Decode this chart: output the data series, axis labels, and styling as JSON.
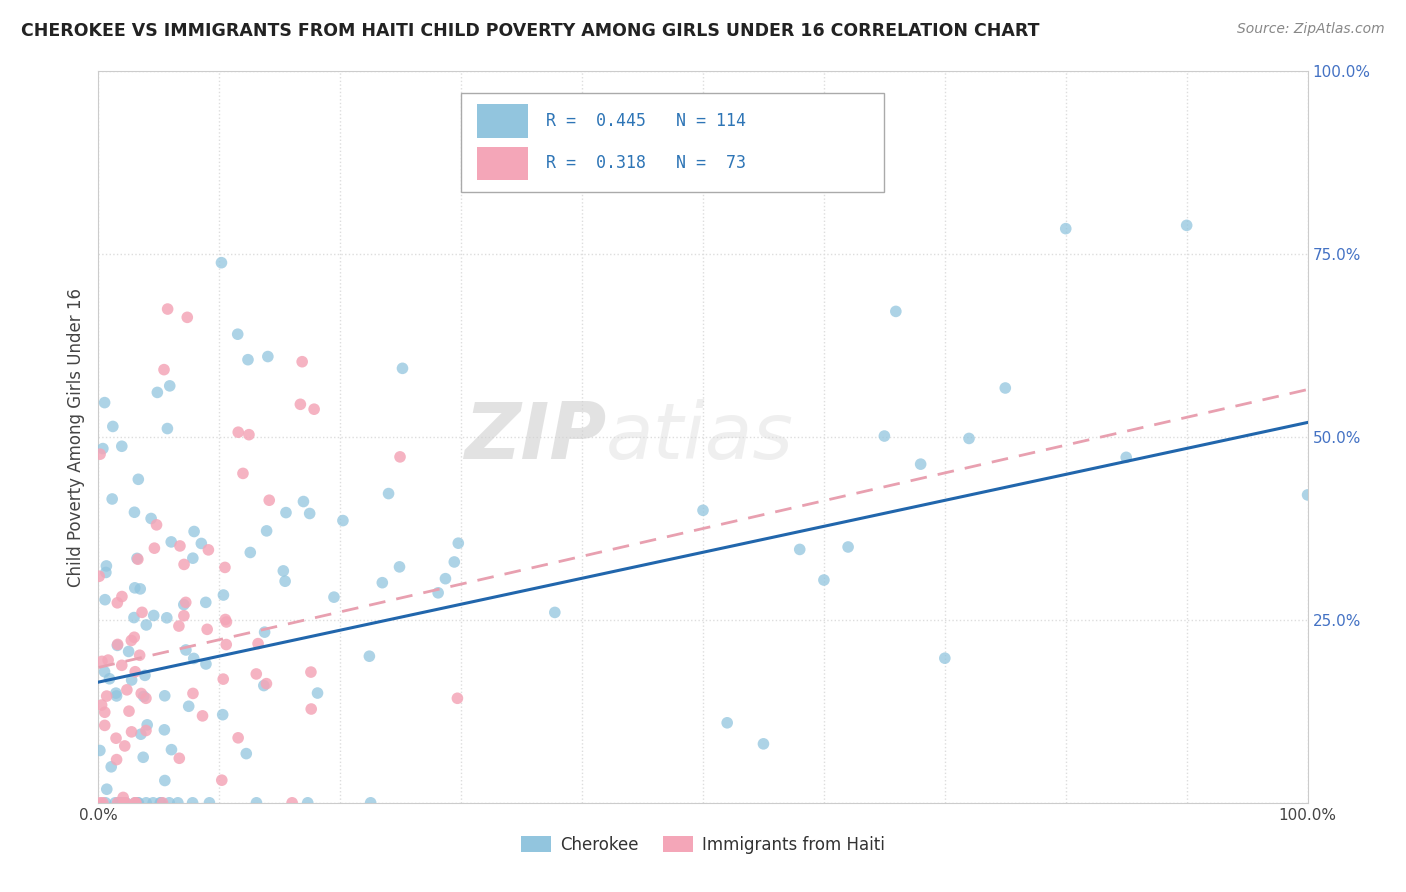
{
  "title": "CHEROKEE VS IMMIGRANTS FROM HAITI CHILD POVERTY AMONG GIRLS UNDER 16 CORRELATION CHART",
  "source": "Source: ZipAtlas.com",
  "ylabel": "Child Poverty Among Girls Under 16",
  "watermark_zip": "ZIP",
  "watermark_atlas": "atias",
  "cherokee_color": "#92c5de",
  "haiti_color": "#f4a6b8",
  "cherokee_line_color": "#2166ac",
  "haiti_line_color": "#f4a6b8",
  "legend_name_1": "Cherokee",
  "legend_name_2": "Immigrants from Haiti",
  "R1": 0.445,
  "N1": 114,
  "R2": 0.318,
  "N2": 73,
  "background_color": "#ffffff",
  "grid_color": "#dddddd",
  "ytick_color": "#4472c4",
  "title_color": "#222222",
  "source_color": "#888888"
}
